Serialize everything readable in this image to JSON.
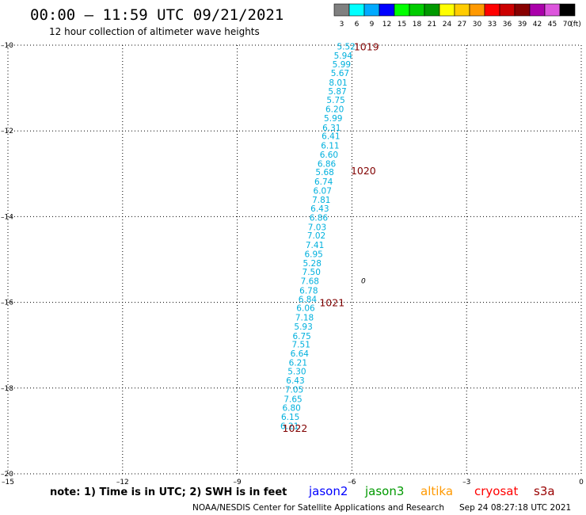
{
  "header": {
    "title": "00:00 – 11:59 UTC 09/21/2021",
    "subtitle": "12 hour collection of altimeter wave heights"
  },
  "colorbar": {
    "unit": "(ft)",
    "bins": [
      {
        "label": "3",
        "color": "#808080"
      },
      {
        "label": "6",
        "color": "#00ffff"
      },
      {
        "label": "9",
        "color": "#00aaff"
      },
      {
        "label": "12",
        "color": "#0000ff"
      },
      {
        "label": "15",
        "color": "#00ff00"
      },
      {
        "label": "18",
        "color": "#00cc00"
      },
      {
        "label": "21",
        "color": "#009900"
      },
      {
        "label": "24",
        "color": "#ffff00"
      },
      {
        "label": "27",
        "color": "#ffcc00"
      },
      {
        "label": "30",
        "color": "#ff9900"
      },
      {
        "label": "33",
        "color": "#ff0000"
      },
      {
        "label": "36",
        "color": "#cc0000"
      },
      {
        "label": "39",
        "color": "#880000"
      },
      {
        "label": "42",
        "color": "#aa00aa"
      },
      {
        "label": "45",
        "color": "#dd55dd"
      },
      {
        "label": "70",
        "color": "#000000"
      }
    ]
  },
  "chart_data": {
    "type": "scatter",
    "xlim": [
      -15,
      0
    ],
    "ylim": [
      -20,
      -10
    ],
    "grid": true,
    "x_ticks": [
      -15,
      -12,
      -9,
      -6,
      -3,
      0
    ],
    "x_tick_labels": [
      "–15",
      "–12",
      "–9",
      "–6",
      "–3",
      "0"
    ],
    "y_ticks": [
      -10,
      -12,
      -14,
      -16,
      -18,
      -20
    ],
    "y_tick_labels": [
      "–10",
      "–12",
      "–14",
      "–16",
      "–18",
      "–20"
    ],
    "points_color": "#00b0dd",
    "points": [
      {
        "x": -6.15,
        "y": -10.03,
        "label": "5.52"
      },
      {
        "x": -6.23,
        "y": -10.24,
        "label": "5.94"
      },
      {
        "x": -6.27,
        "y": -10.44,
        "label": "5.99"
      },
      {
        "x": -6.31,
        "y": -10.65,
        "label": "5.67"
      },
      {
        "x": -6.36,
        "y": -10.87,
        "label": "8.01"
      },
      {
        "x": -6.38,
        "y": -11.07,
        "label": "5.87"
      },
      {
        "x": -6.42,
        "y": -11.28,
        "label": "5.75"
      },
      {
        "x": -6.45,
        "y": -11.49,
        "label": "6.20"
      },
      {
        "x": -6.49,
        "y": -11.7,
        "label": "5.99"
      },
      {
        "x": -6.53,
        "y": -11.92,
        "label": "6.31"
      },
      {
        "x": -6.55,
        "y": -12.12,
        "label": "6.41"
      },
      {
        "x": -6.57,
        "y": -12.34,
        "label": "6.11"
      },
      {
        "x": -6.6,
        "y": -12.55,
        "label": "6.60"
      },
      {
        "x": -6.66,
        "y": -12.76,
        "label": "6.86"
      },
      {
        "x": -6.71,
        "y": -12.96,
        "label": "5.68"
      },
      {
        "x": -6.74,
        "y": -13.18,
        "label": "6.74"
      },
      {
        "x": -6.77,
        "y": -13.39,
        "label": "6.07"
      },
      {
        "x": -6.8,
        "y": -13.6,
        "label": "7.81"
      },
      {
        "x": -6.84,
        "y": -13.81,
        "label": "6.43"
      },
      {
        "x": -6.87,
        "y": -14.02,
        "label": "6.86"
      },
      {
        "x": -6.91,
        "y": -14.24,
        "label": "7.03"
      },
      {
        "x": -6.93,
        "y": -14.44,
        "label": "7.02"
      },
      {
        "x": -6.97,
        "y": -14.66,
        "label": "7.41"
      },
      {
        "x": -7.0,
        "y": -14.87,
        "label": "6.95"
      },
      {
        "x": -7.04,
        "y": -15.08,
        "label": "5.28"
      },
      {
        "x": -7.06,
        "y": -15.29,
        "label": "7.50"
      },
      {
        "x": -7.1,
        "y": -15.5,
        "label": "7.68"
      },
      {
        "x": -7.13,
        "y": -15.72,
        "label": "6.78"
      },
      {
        "x": -7.16,
        "y": -15.92,
        "label": "6.84"
      },
      {
        "x": -7.21,
        "y": -16.13,
        "label": "6.06"
      },
      {
        "x": -7.24,
        "y": -16.35,
        "label": "7.18"
      },
      {
        "x": -7.27,
        "y": -16.56,
        "label": "5.93"
      },
      {
        "x": -7.31,
        "y": -16.78,
        "label": "6.75"
      },
      {
        "x": -7.33,
        "y": -16.98,
        "label": "7.51"
      },
      {
        "x": -7.37,
        "y": -17.19,
        "label": "6.64"
      },
      {
        "x": -7.41,
        "y": -17.4,
        "label": "6.21"
      },
      {
        "x": -7.44,
        "y": -17.61,
        "label": "5.30"
      },
      {
        "x": -7.48,
        "y": -17.82,
        "label": "6.43"
      },
      {
        "x": -7.51,
        "y": -18.03,
        "label": "7.05"
      },
      {
        "x": -7.54,
        "y": -18.25,
        "label": "7.65"
      },
      {
        "x": -7.58,
        "y": -18.46,
        "label": "6.80"
      },
      {
        "x": -7.61,
        "y": -18.67,
        "label": "6.15"
      },
      {
        "x": -7.63,
        "y": -18.88,
        "label": "6.21"
      }
    ],
    "track_color": "#800000",
    "track_labels": [
      {
        "x": -5.95,
        "y": -10.03,
        "label": "1019"
      },
      {
        "x": -6.03,
        "y": -12.92,
        "label": "1020"
      },
      {
        "x": -6.85,
        "y": -16.0,
        "label": "1021"
      },
      {
        "x": -7.82,
        "y": -18.93,
        "label": "1022"
      }
    ],
    "markers": [
      {
        "x": -5.7,
        "y": -15.5,
        "label": "0"
      }
    ]
  },
  "footer": {
    "note": "note: 1) Time is in UTC; 2) SWH is in feet",
    "satellites": [
      {
        "label": "jason2",
        "color": "#0000ff"
      },
      {
        "label": "jason3",
        "color": "#009900"
      },
      {
        "label": "altika",
        "color": "#ff9900"
      },
      {
        "label": "cryosat",
        "color": "#ff0000"
      },
      {
        "label": "s3a",
        "color": "#990000"
      }
    ],
    "credit": "NOAA/NESDIS Center for Satellite Applications and Research",
    "timestamp": "Sep 24 08:27:18 UTC 2021"
  }
}
